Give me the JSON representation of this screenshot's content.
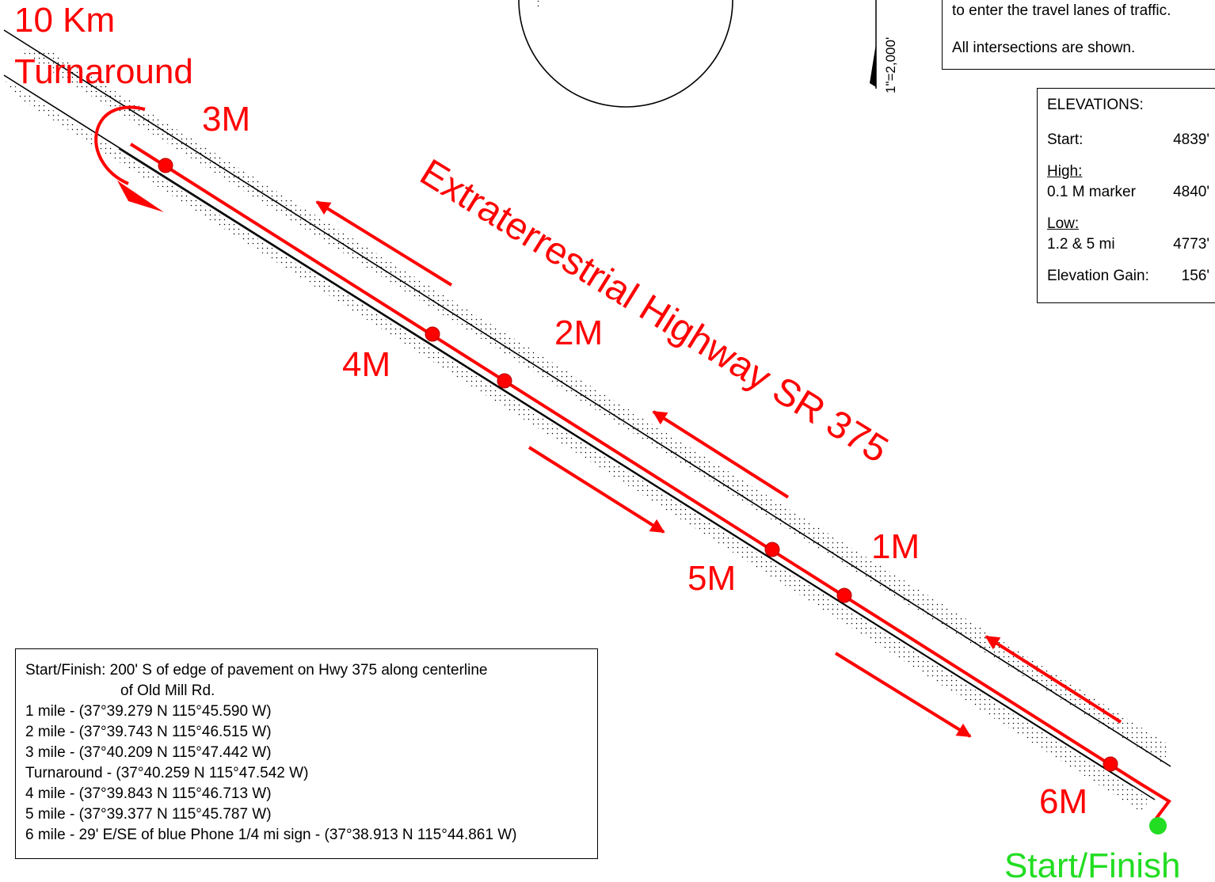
{
  "labels": {
    "turnaround_line1": "10 Km",
    "turnaround_line2": "Turnaround",
    "highway": "Extraterrestrial Highway SR 375",
    "start_finish": "Start/Finish",
    "scale": "1\"=2,000'"
  },
  "mile_markers": [
    {
      "label": "1M"
    },
    {
      "label": "2M"
    },
    {
      "label": "3M"
    },
    {
      "label": "4M"
    },
    {
      "label": "5M"
    },
    {
      "label": "6M"
    }
  ],
  "notes": {
    "line1": "to enter the travel lanes of traffic.",
    "line2": "All intersections are shown."
  },
  "elevations": {
    "title": "ELEVATIONS:",
    "start_label": "Start:",
    "start_value": "4839'",
    "high_label": "High:",
    "high_point": "0.1 M marker",
    "high_value": "4840'",
    "low_label": "Low:",
    "low_point": "1.2 & 5 mi",
    "low_value": "4773'",
    "gain_label": "Elevation Gain:",
    "gain_value": "156'"
  },
  "legend": {
    "start_line1": "Start/Finish: 200' S of edge of pavement on Hwy 375 along centerline",
    "start_line2": "of Old Mill Rd.",
    "mile1": "1 mile  - (37°39.279 N 115°45.590 W)",
    "mile2": "2 mile  -  (37°39.743 N 115°46.515 W)",
    "mile3": "3 mile  -  (37°40.209 N 115°47.442 W)",
    "turnaround": "Turnaround  -  (37°40.259 N 115°47.542 W)",
    "mile4": "4 mile  -  (37°39.843 N 115°46.713 W)",
    "mile5": "5 mile  -  (37°39.377 N 115°45.787 W)",
    "mile6": "6 mile  - 29' E/SE of blue Phone 1/4 mi sign - (37°38.913 N 115°44.861 W)"
  },
  "colors": {
    "route": "#ff0000",
    "start_marker": "#22dd22",
    "road": "#000000"
  }
}
